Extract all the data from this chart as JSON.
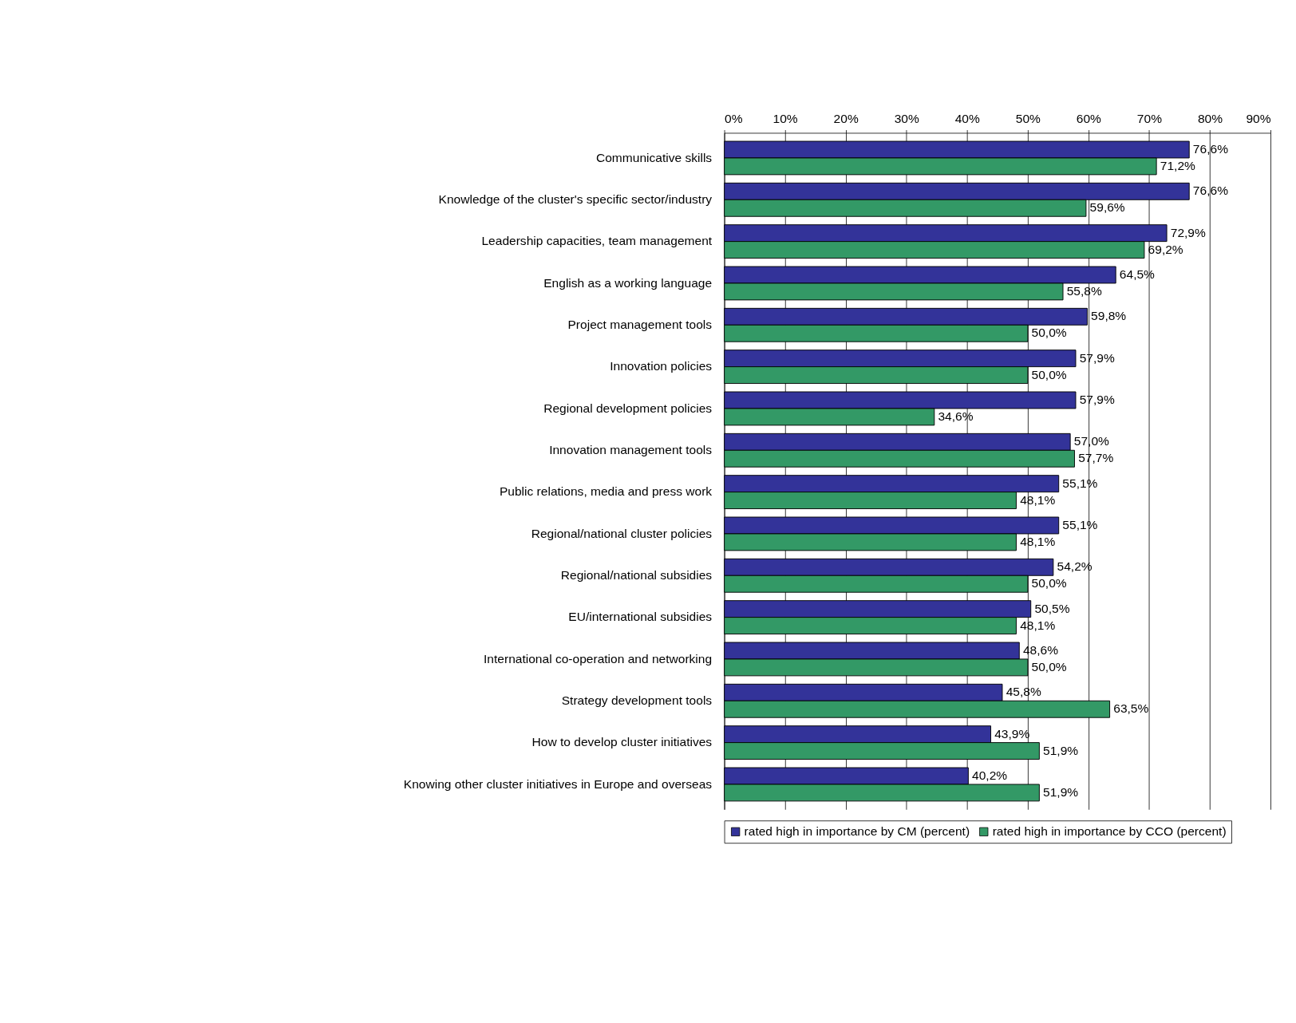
{
  "chart_data": {
    "type": "bar",
    "orientation": "horizontal",
    "categories": [
      "Communicative skills",
      "Knowledge of the cluster's specific sector/industry",
      "Leadership capacities, team management",
      "English as a working language",
      "Project management tools",
      "Innovation policies",
      "Regional development policies",
      "Innovation management tools",
      "Public relations, media and press work",
      "Regional/national cluster policies",
      "Regional/national subsidies",
      "EU/international subsidies",
      "International co-operation and networking",
      "Strategy development tools",
      "How to develop cluster initiatives",
      "Knowing other cluster initiatives in Europe and overseas"
    ],
    "series": [
      {
        "name": "rated high in importance by CM (percent)",
        "color": "#333399",
        "values": [
          76.6,
          76.6,
          72.9,
          64.5,
          59.8,
          57.9,
          57.9,
          57.0,
          55.1,
          55.1,
          54.2,
          50.5,
          48.6,
          45.8,
          43.9,
          40.2
        ],
        "value_labels": [
          "76,6%",
          "76,6%",
          "72,9%",
          "64,5%",
          "59,8%",
          "57,9%",
          "57,9%",
          "57,0%",
          "55,1%",
          "55,1%",
          "54,2%",
          "50,5%",
          "48,6%",
          "45,8%",
          "43,9%",
          "40,2%"
        ]
      },
      {
        "name": "rated high in importance by CCO (percent)",
        "color": "#339966",
        "values": [
          71.2,
          59.6,
          69.2,
          55.8,
          50.0,
          50.0,
          34.6,
          57.7,
          48.1,
          48.1,
          50.0,
          48.1,
          50.0,
          63.5,
          51.9,
          51.9
        ],
        "value_labels": [
          "71,2%",
          "59,6%",
          "69,2%",
          "55,8%",
          "50,0%",
          "50,0%",
          "34,6%",
          "57,7%",
          "48,1%",
          "48,1%",
          "50,0%",
          "48,1%",
          "50,0%",
          "63,5%",
          "51,9%",
          "51,9%"
        ]
      }
    ],
    "xlim": [
      0,
      90
    ],
    "xticks": [
      {
        "value": 0,
        "label": "0%"
      },
      {
        "value": 10,
        "label": "10%"
      },
      {
        "value": 20,
        "label": "20%"
      },
      {
        "value": 30,
        "label": "30%"
      },
      {
        "value": 40,
        "label": "40%"
      },
      {
        "value": 50,
        "label": "50%"
      },
      {
        "value": 60,
        "label": "60%"
      },
      {
        "value": 70,
        "label": "70%"
      },
      {
        "value": 80,
        "label": "80%"
      },
      {
        "value": 90,
        "label": "90%"
      }
    ],
    "grid": "x",
    "legend": "bottom"
  }
}
